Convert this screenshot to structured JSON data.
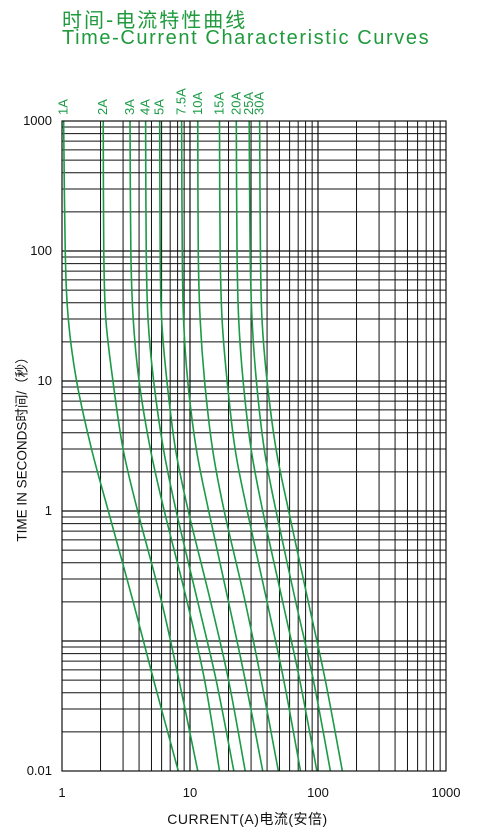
{
  "header": {
    "title_cn": "时间-电流特性曲线",
    "title_en": "Time-Current Characteristic Curves"
  },
  "colors": {
    "curve": "#1a9b46",
    "title": "#1f9a3c",
    "grid": "#111111"
  },
  "chart_data": {
    "type": "line",
    "title": "Time-Current Characteristic Curves",
    "xlabel": "CURRENT(A)电流(安倍)",
    "ylabel": "TIME IN SECONDS时间/（秒）",
    "x_scale": "log",
    "y_scale": "log",
    "xlim": [
      1,
      1000
    ],
    "ylim": [
      0.01,
      1000
    ],
    "x_ticks": [
      1,
      10,
      100,
      1000
    ],
    "x_tick_labels": [
      "1",
      "10",
      "100",
      "1000"
    ],
    "y_ticks": [
      0.01,
      0.1,
      1,
      10,
      100,
      1000
    ],
    "y_tick_labels": [
      "0.01",
      "",
      "1",
      "10",
      "100",
      "1000"
    ],
    "grid": true,
    "series": [
      {
        "name": "1A",
        "rating": 1,
        "points": [
          [
            1.03,
            1000
          ],
          [
            1.06,
            100
          ],
          [
            1.12,
            30
          ],
          [
            1.3,
            10
          ],
          [
            1.7,
            3
          ],
          [
            2.3,
            1
          ],
          [
            3.6,
            0.2
          ],
          [
            5.2,
            0.05
          ],
          [
            8.1,
            0.01
          ]
        ]
      },
      {
        "name": "2A",
        "rating": 2,
        "points": [
          [
            2.1,
            1000
          ],
          [
            2.12,
            100
          ],
          [
            2.2,
            30
          ],
          [
            2.5,
            10
          ],
          [
            3.0,
            3
          ],
          [
            3.9,
            1
          ],
          [
            6.0,
            0.2
          ],
          [
            8.2,
            0.05
          ],
          [
            11.5,
            0.01
          ]
        ]
      },
      {
        "name": "3A",
        "rating": 3,
        "points": [
          [
            3.4,
            1000
          ],
          [
            3.45,
            100
          ],
          [
            3.6,
            30
          ],
          [
            4.0,
            10
          ],
          [
            4.9,
            3
          ],
          [
            6.3,
            1
          ],
          [
            9.5,
            0.2
          ],
          [
            13,
            0.05
          ],
          [
            17,
            0.01
          ]
        ]
      },
      {
        "name": "4A",
        "rating": 4,
        "points": [
          [
            4.5,
            1000
          ],
          [
            4.55,
            100
          ],
          [
            4.7,
            30
          ],
          [
            5.2,
            10
          ],
          [
            6.2,
            3
          ],
          [
            7.8,
            1
          ],
          [
            11.5,
            0.2
          ],
          [
            16,
            0.05
          ],
          [
            22,
            0.01
          ]
        ]
      },
      {
        "name": "5A",
        "rating": 5,
        "points": [
          [
            5.8,
            1000
          ],
          [
            5.85,
            100
          ],
          [
            6.0,
            30
          ],
          [
            6.6,
            10
          ],
          [
            7.7,
            3
          ],
          [
            9.7,
            1
          ],
          [
            14.5,
            0.2
          ],
          [
            20,
            0.05
          ],
          [
            27,
            0.01
          ]
        ]
      },
      {
        "name": "7.5A",
        "rating": 7.5,
        "points": [
          [
            8.6,
            1000
          ],
          [
            8.7,
            100
          ],
          [
            8.9,
            30
          ],
          [
            9.6,
            10
          ],
          [
            11.2,
            3
          ],
          [
            14,
            1
          ],
          [
            20,
            0.2
          ],
          [
            27,
            0.05
          ],
          [
            37,
            0.01
          ]
        ]
      },
      {
        "name": "10A",
        "rating": 10,
        "points": [
          [
            11.5,
            1000
          ],
          [
            11.6,
            100
          ],
          [
            12,
            30
          ],
          [
            13,
            10
          ],
          [
            15,
            3
          ],
          [
            18.5,
            1
          ],
          [
            27,
            0.2
          ],
          [
            36,
            0.05
          ],
          [
            49,
            0.01
          ]
        ]
      },
      {
        "name": "15A",
        "rating": 15,
        "points": [
          [
            17,
            1000
          ],
          [
            17.2,
            100
          ],
          [
            17.8,
            30
          ],
          [
            19.5,
            10
          ],
          [
            22.5,
            3
          ],
          [
            28,
            1
          ],
          [
            40,
            0.2
          ],
          [
            54,
            0.05
          ],
          [
            73,
            0.01
          ]
        ]
      },
      {
        "name": "20A",
        "rating": 20,
        "points": [
          [
            23,
            1000
          ],
          [
            23.3,
            100
          ],
          [
            24,
            30
          ],
          [
            26,
            10
          ],
          [
            30,
            3
          ],
          [
            37,
            1
          ],
          [
            53,
            0.2
          ],
          [
            72,
            0.05
          ],
          [
            98,
            0.01
          ]
        ]
      },
      {
        "name": "25A",
        "rating": 25,
        "points": [
          [
            29,
            1000
          ],
          [
            29.5,
            100
          ],
          [
            30.5,
            30
          ],
          [
            33,
            10
          ],
          [
            38,
            3
          ],
          [
            47,
            1
          ],
          [
            67,
            0.2
          ],
          [
            92,
            0.05
          ],
          [
            125,
            0.01
          ]
        ]
      },
      {
        "name": "30A",
        "rating": 30,
        "points": [
          [
            35,
            1000
          ],
          [
            35.5,
            100
          ],
          [
            36.5,
            30
          ],
          [
            40,
            10
          ],
          [
            47,
            3
          ],
          [
            59,
            1
          ],
          [
            84,
            0.2
          ],
          [
            114,
            0.05
          ],
          [
            155,
            0.01
          ]
        ]
      }
    ]
  }
}
